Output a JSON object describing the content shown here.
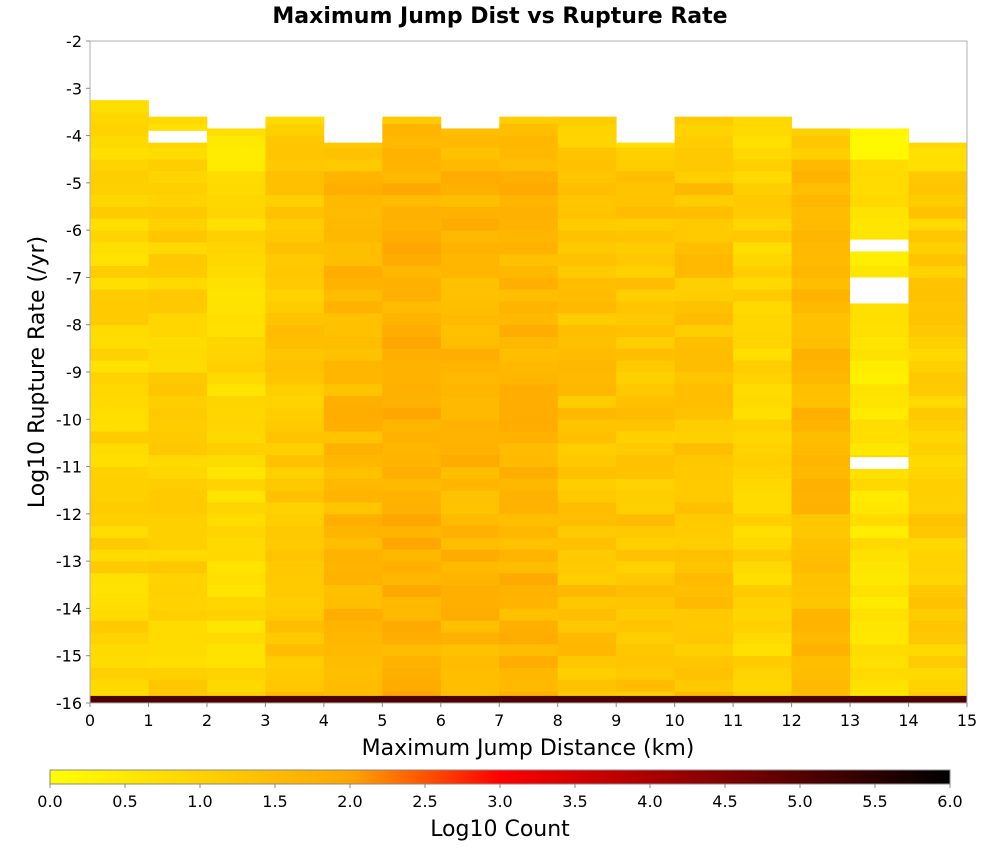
{
  "chart_data": {
    "type": "heatmap",
    "title": "Maximum Jump Dist vs Rupture Rate",
    "xlabel": "Maximum Jump Distance (km)",
    "ylabel": "Log10 Rupture Rate (/yr)",
    "x_bin_edges": [
      0,
      1,
      2,
      3,
      4,
      5,
      6,
      7,
      8,
      9,
      10,
      11,
      12,
      13,
      14,
      15
    ],
    "y_bin_edges": [
      -16,
      -15.75,
      -15.5,
      -15.25,
      -15,
      -14.75,
      -14.5,
      -14.25,
      -14,
      -13.75,
      -13.5,
      -13.25,
      -13,
      -12.75,
      -12.5,
      -12.25,
      -12,
      -11.75,
      -11.5,
      -11.25,
      -11,
      -10.75,
      -10.5,
      -10.25,
      -10,
      -9.75,
      -9.5,
      -9.25,
      -9,
      -8.75,
      -8.5,
      -8.25,
      -8,
      -7.75,
      -7.5,
      -7.25,
      -7,
      -6.75,
      -6.5,
      -6.25,
      -6,
      -5.75,
      -5.5,
      -5.25,
      -5,
      -4.75,
      -4.5,
      -4.25,
      -4,
      -3.75,
      -3.5,
      -3.25,
      -3,
      -2.75,
      -2.5,
      -2.25,
      -2
    ],
    "xlim": [
      0,
      15
    ],
    "ylim": [
      -16,
      -2
    ],
    "x_ticks": [
      "0",
      "1",
      "2",
      "3",
      "4",
      "5",
      "6",
      "7",
      "8",
      "9",
      "10",
      "11",
      "12",
      "13",
      "14",
      "15"
    ],
    "y_ticks": [
      "-2",
      "-3",
      "-4",
      "-5",
      "-6",
      "-7",
      "-8",
      "-9",
      "-10",
      "-11",
      "-12",
      "-13",
      "-14",
      "-15",
      "-16"
    ],
    "colorbar": {
      "label": "Log10 Count",
      "range": [
        0,
        6
      ],
      "ticks": [
        "0.0",
        "0.5",
        "1.0",
        "1.5",
        "2.0",
        "2.5",
        "3.0",
        "3.5",
        "4.0",
        "4.5",
        "5.0",
        "5.5",
        "6.0"
      ]
    },
    "bottom_row": {
      "y_from": -16,
      "y_to": -15.85,
      "value": 5.1
    },
    "columns": [
      {
        "top": -3.25,
        "base": 0.9,
        "holes": []
      },
      {
        "top": -3.6,
        "base": 1.0,
        "holes": [
          [
            -4.15,
            -3.9
          ]
        ]
      },
      {
        "top": -3.85,
        "base": 0.8,
        "holes": []
      },
      {
        "top": -3.6,
        "base": 1.25,
        "holes": []
      },
      {
        "top": -4.15,
        "base": 1.55,
        "holes": []
      },
      {
        "top": -3.6,
        "base": 1.75,
        "holes": []
      },
      {
        "top": -3.85,
        "base": 1.6,
        "holes": []
      },
      {
        "top": -3.6,
        "base": 1.65,
        "holes": []
      },
      {
        "top": -3.6,
        "base": 1.35,
        "holes": []
      },
      {
        "top": -4.15,
        "base": 1.25,
        "holes": []
      },
      {
        "top": -3.6,
        "base": 1.3,
        "holes": []
      },
      {
        "top": -3.6,
        "base": 0.95,
        "holes": []
      },
      {
        "top": -3.85,
        "base": 1.5,
        "holes": []
      },
      {
        "top": -3.85,
        "base": 0.6,
        "holes": [
          [
            -6.45,
            -6.2
          ],
          [
            -7.55,
            -7.0
          ],
          [
            -11.05,
            -10.8
          ]
        ]
      },
      {
        "top": -4.15,
        "base": 1.1,
        "holes": []
      }
    ],
    "colors": {
      "scale": [
        "#ffff00",
        "#ffa500",
        "#ff0000",
        "#000000"
      ],
      "frame": "#b0b0b0"
    }
  }
}
